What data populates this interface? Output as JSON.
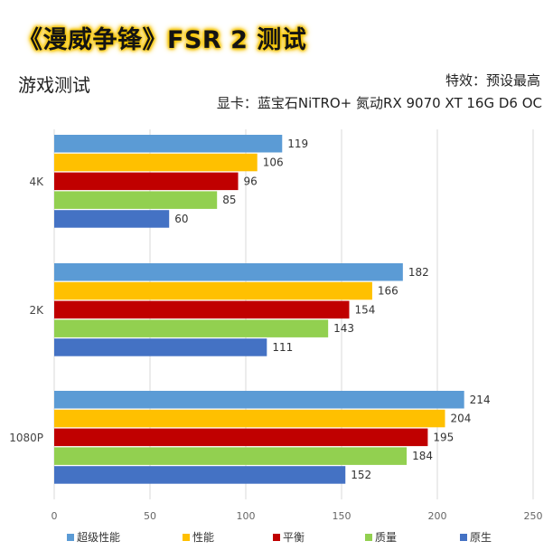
{
  "header": {
    "banner": "《漫威争锋》FSR 2 测试",
    "subtitle": "游戏测试",
    "effects": "特效：预设最高",
    "gpu": "显卡：蓝宝石NiTRO+ 氮动RX 9070 XT 16G D6 OC"
  },
  "colors": {
    "超级性能": "#5b9bd5",
    "性能": "#ffc000",
    "平衡": "#c00000",
    "质量": "#92d050",
    "原生": "#4472c4"
  },
  "chart_data": {
    "type": "bar",
    "orientation": "horizontal",
    "categories": [
      "4K",
      "2K",
      "1080P"
    ],
    "series": [
      {
        "name": "超级性能",
        "values": [
          119,
          182,
          214
        ]
      },
      {
        "name": "性能",
        "values": [
          106,
          166,
          204
        ]
      },
      {
        "name": "平衡",
        "values": [
          96,
          154,
          195
        ]
      },
      {
        "name": "质量",
        "values": [
          85,
          143,
          184
        ]
      },
      {
        "name": "原生",
        "values": [
          60,
          111,
          152
        ]
      }
    ],
    "xlim": [
      0,
      250
    ],
    "xticks": [
      0,
      50,
      100,
      150,
      200,
      250
    ],
    "grid": true,
    "legend": "bottom"
  }
}
